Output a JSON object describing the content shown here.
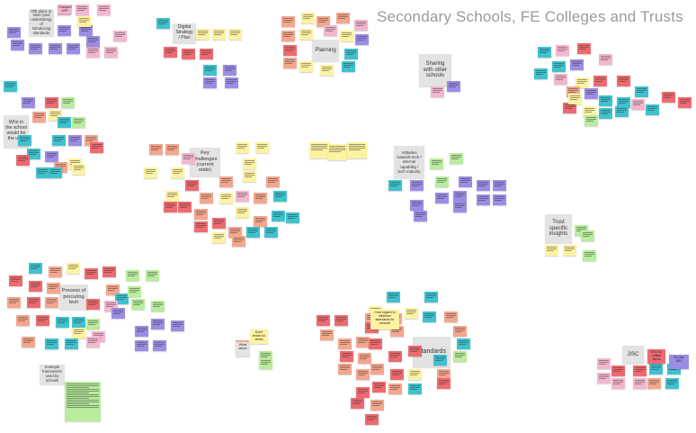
{
  "board": {
    "title": "Secondary Schools, FE Colleges and Trusts",
    "labels": [
      {
        "id": "label-dfe",
        "text": "DfE plans or steer (and undertaking) of introducing standards"
      },
      {
        "id": "label-digital",
        "text": "Digital Strategy / Plan"
      },
      {
        "id": "label-planning",
        "text": "Planning"
      },
      {
        "id": "label-sharing",
        "text": "Sharing with other schools"
      },
      {
        "id": "label-who",
        "text": "Who in the school would be the user"
      },
      {
        "id": "label-key",
        "text": "Key challenges (current state)"
      },
      {
        "id": "label-attitudes",
        "text": "Attitudes towards tech / internal capability / tech maturity"
      },
      {
        "id": "label-trust",
        "text": "Trust specific insights"
      },
      {
        "id": "label-process",
        "text": "Process of procuring tech"
      },
      {
        "id": "label-standards",
        "text": "Standards"
      },
      {
        "id": "label-jisc",
        "text": "JISC"
      },
      {
        "id": "label-example",
        "text": "Example frameworks used by schools"
      }
    ],
    "note_texts": {
      "dfe_note": "Cheaper/ WiFi",
      "jisc_note_1": "JISC for critical items",
      "jisc_note_2": "Do use JISC",
      "standards_note": "Core regard to minimum standards for schools",
      "dont_know": "Don't know/ no views",
      "central_ict": "Central help/advice/ ICT/ CPD",
      "trust_note": "Example of JISC",
      "what_about": "What about"
    },
    "colors": {
      "yellow": "#fdf2a0",
      "pink": "#f4b6cf",
      "purple": "#9c8ce6",
      "cyan": "#3ec2cf",
      "red": "#ee6a70",
      "salmon": "#f5a68d",
      "green": "#b9ec9c",
      "grey": "#e3e3e3"
    }
  }
}
